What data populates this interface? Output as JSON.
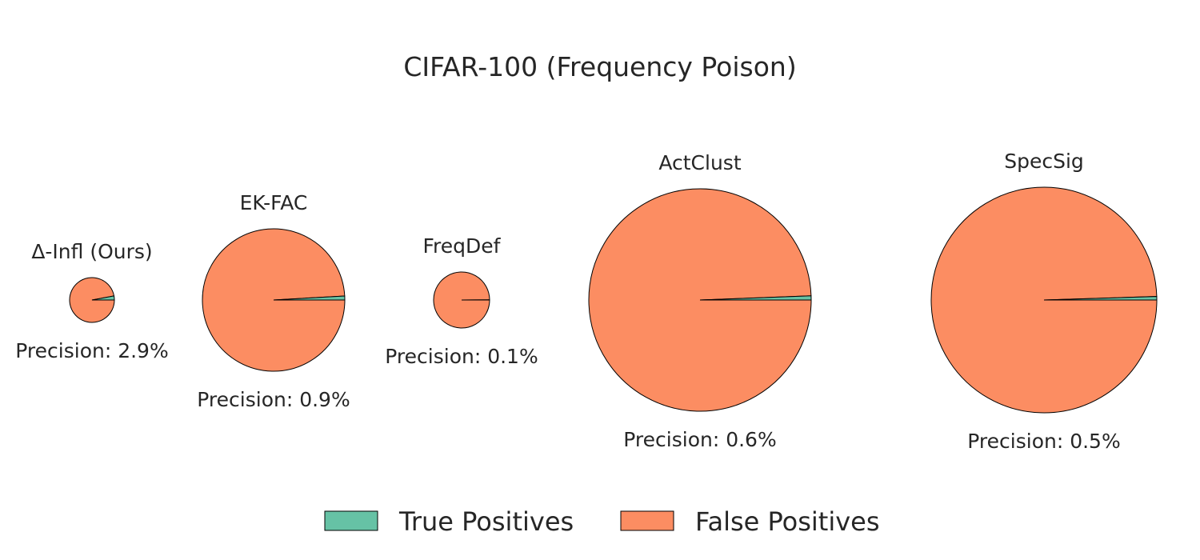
{
  "chart_data": {
    "type": "pie",
    "title": "CIFAR-100 (Frequency Poison)",
    "colors": {
      "true_positives": "#66c2a5",
      "false_positives": "#fc8d62",
      "edge": "#000000"
    },
    "legend": {
      "placement": "bottom-center",
      "entries": [
        {
          "key": "true_positives",
          "label": "True Positives"
        },
        {
          "key": "false_positives",
          "label": "False Positives"
        }
      ]
    },
    "pies": [
      {
        "name": "Δ-Infl (Ours)",
        "precision_pct": 2.9,
        "precision_label": "Precision: 2.9%"
      },
      {
        "name": "EK-FAC",
        "precision_pct": 0.9,
        "precision_label": "Precision: 0.9%"
      },
      {
        "name": "FreqDef",
        "precision_pct": 0.1,
        "precision_label": "Precision: 0.1%"
      },
      {
        "name": "ActClust",
        "precision_pct": 0.6,
        "precision_label": "Precision: 0.6%"
      },
      {
        "name": "SpecSig",
        "precision_pct": 0.5,
        "precision_label": "Precision: 0.5%"
      }
    ]
  }
}
